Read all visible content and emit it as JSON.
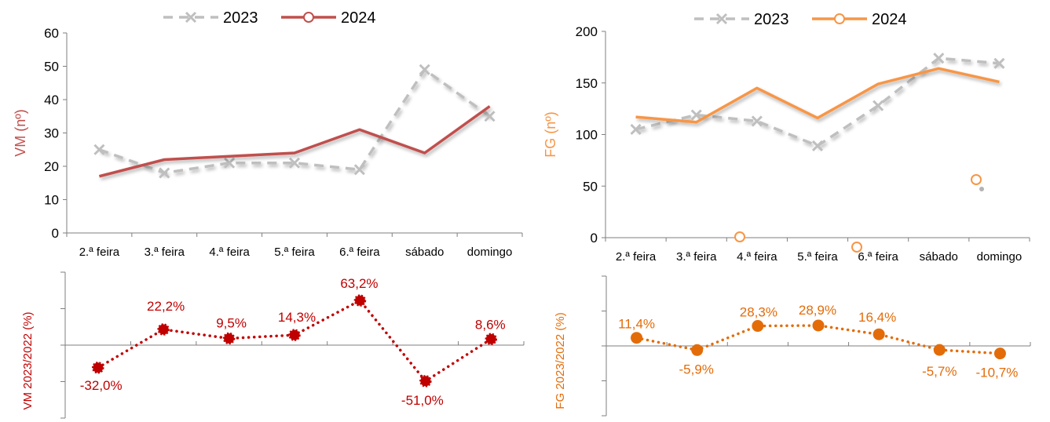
{
  "colors": {
    "vm": "#c0504d",
    "fg": "#f79646",
    "fg_dark": "#e36c09",
    "vm_var": "#c00000",
    "y2023": "#bfbfbf",
    "axis": "#7f7f7f"
  },
  "chart_data": [
    {
      "id": "vm-chart",
      "type": "line",
      "categories": [
        "2.ª feira",
        "3.ª feira",
        "4.ª feira",
        "5.ª feira",
        "6.ª feira",
        "sábado",
        "domingo"
      ],
      "series": [
        {
          "name": "2023",
          "values": [
            25,
            18,
            21,
            21,
            19,
            49,
            35
          ],
          "style": "dashed-x",
          "color": "#bfbfbf"
        },
        {
          "name": "2024",
          "values": [
            17,
            22,
            23,
            24,
            31,
            24,
            38
          ],
          "style": "solid",
          "color": "#c0504d"
        }
      ],
      "ylabel": "VM (nº)",
      "ylim": [
        0,
        60
      ],
      "yticks": [
        "0",
        "10",
        "20",
        "30",
        "40",
        "50",
        "60"
      ],
      "legend": "top-center"
    },
    {
      "id": "fg-chart",
      "type": "line",
      "categories": [
        "2.ª feira",
        "3.ª feira",
        "4.ª feira",
        "5.ª feira",
        "6.ª feira",
        "sábado",
        "domingo"
      ],
      "series": [
        {
          "name": "2023",
          "values": [
            105,
            119,
            113,
            89,
            128,
            174,
            169
          ],
          "style": "dashed-x",
          "color": "#bfbfbf"
        },
        {
          "name": "2024",
          "values": [
            117,
            112,
            145,
            116,
            149,
            164,
            151
          ],
          "style": "solid",
          "color": "#f79646"
        }
      ],
      "ylabel": "FG (nº)",
      "ylim": [
        0,
        200
      ],
      "yticks": [
        "0",
        "50",
        "100",
        "150",
        "200"
      ],
      "legend": "top-center"
    },
    {
      "id": "vm-var-chart",
      "type": "line",
      "categories": [
        "2.ª feira",
        "3.ª feira",
        "4.ª feira",
        "5.ª feira",
        "6.ª feira",
        "sábado",
        "domingo"
      ],
      "series": [
        {
          "values": [
            -32.0,
            22.2,
            9.5,
            14.3,
            63.2,
            -51.0,
            8.6
          ],
          "labels": [
            "-32,0%",
            "22,2%",
            "9,5%",
            "14,3%",
            "63,2%",
            "-51,0%",
            "8,6%"
          ],
          "style": "dotted-marker",
          "color": "#c00000"
        }
      ],
      "ylabel": "VM 2023/2022 (%)",
      "ylim": [
        -100,
        100
      ]
    },
    {
      "id": "fg-var-chart",
      "type": "line",
      "categories": [
        "2.ª feira",
        "3.ª feira",
        "4.ª feira",
        "5.ª feira",
        "6.ª feira",
        "sábado",
        "domingo"
      ],
      "series": [
        {
          "values": [
            11.4,
            -5.9,
            28.3,
            28.9,
            16.4,
            -5.7,
            -10.7
          ],
          "labels": [
            "11,4%",
            "-5,9%",
            "28,3%",
            "28,9%",
            "16,4%",
            "-5,7%",
            "-10,7%"
          ],
          "style": "dotted-marker",
          "color": "#e36c09"
        }
      ],
      "ylabel": "FG 2023/2022 (%)",
      "ylim": [
        -100,
        100
      ]
    }
  ]
}
